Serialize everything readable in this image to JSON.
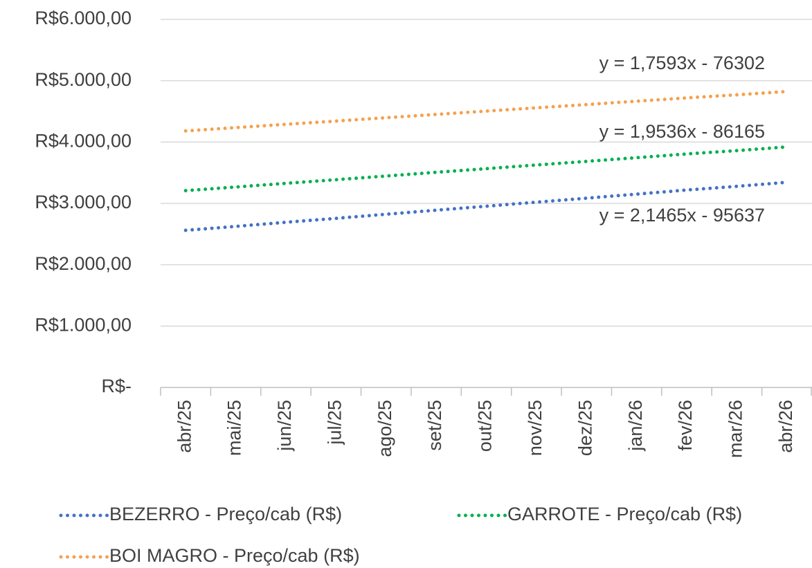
{
  "chart_data": {
    "type": "line",
    "categories": [
      "abr/25",
      "mai/25",
      "jun/25",
      "jul/25",
      "ago/25",
      "set/25",
      "out/25",
      "nov/25",
      "dez/25",
      "jan/26",
      "fev/26",
      "mar/26",
      "abr/26"
    ],
    "series": [
      {
        "name": "BEZERRO - Preço/cab (R$)",
        "color": "#4472c4",
        "values": [
          2561,
          2625,
          2692,
          2756,
          2823,
          2889,
          2954,
          3020,
          3085,
          3151,
          3218,
          3278,
          3344
        ]
      },
      {
        "name": "GARROTE - Preço/cab (R$)",
        "color": "#00b050",
        "values": [
          3208,
          3267,
          3327,
          3386,
          3446,
          3507,
          3566,
          3626,
          3685,
          3745,
          3806,
          3860,
          3921
        ]
      },
      {
        "name": "BOI MAGRO - Preço/cab (R$)",
        "color": "#f4a14f",
        "values": [
          4182,
          4235,
          4289,
          4342,
          4397,
          4451,
          4504,
          4558,
          4611,
          4666,
          4720,
          4770,
          4824
        ]
      }
    ],
    "annotations": [
      "y = 2,1465x - 95637",
      "y = 1,9536x - 86165",
      "y = 1,7593x - 76302"
    ],
    "ylim": [
      0,
      6000
    ],
    "yticks": [
      {
        "value": 0,
        "label": "R$-"
      },
      {
        "value": 1000,
        "label": "R$1.000,00"
      },
      {
        "value": 2000,
        "label": "R$2.000,00"
      },
      {
        "value": 3000,
        "label": "R$3.000,00"
      },
      {
        "value": 4000,
        "label": "R$4.000,00"
      },
      {
        "value": 5000,
        "label": "R$5.000,00"
      },
      {
        "value": 6000,
        "label": "R$6.000,00"
      }
    ],
    "grid": true,
    "legend": "bottom"
  }
}
